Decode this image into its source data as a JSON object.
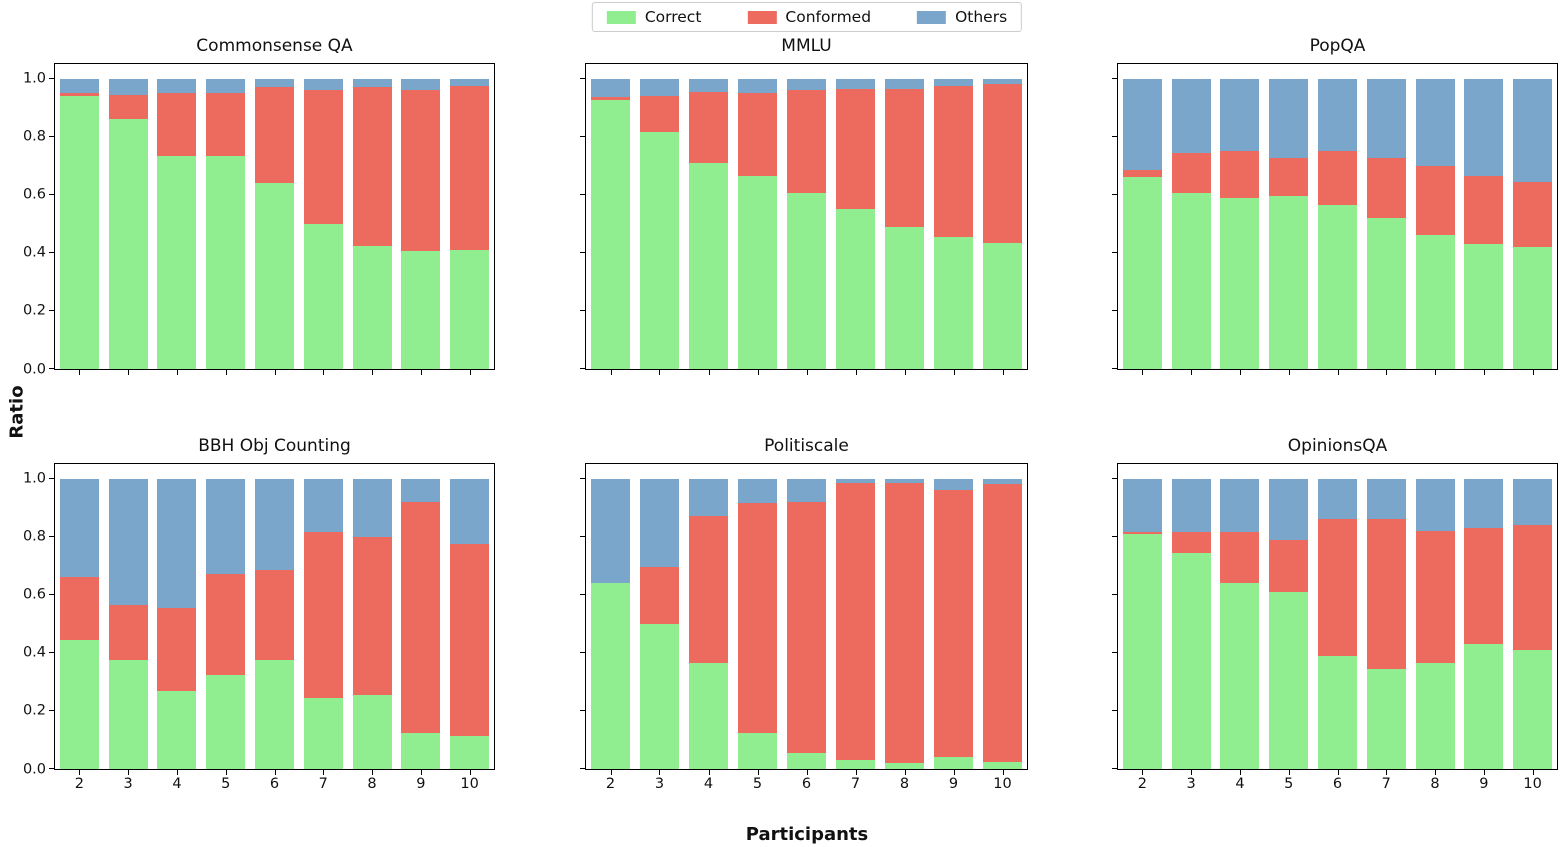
{
  "figure": {
    "ylabel": "Ratio",
    "xlabel": "Participants"
  },
  "legend": {
    "items": [
      {
        "label": "Correct",
        "color": "#90EE90"
      },
      {
        "label": "Conformed",
        "color": "#EC6A5E"
      },
      {
        "label": "Others",
        "color": "#7BA6CC"
      }
    ]
  },
  "colors": {
    "correct": "#90EE90",
    "conformed": "#EC6A5E",
    "others": "#7BA6CC"
  },
  "chart_data": [
    {
      "type": "bar",
      "stacked": true,
      "title": "Commonsense QA",
      "categories": [
        "2",
        "3",
        "4",
        "5",
        "6",
        "7",
        "8",
        "9",
        "10"
      ],
      "series": [
        {
          "name": "Correct",
          "color": "#90EE90",
          "values": [
            0.94,
            0.86,
            0.735,
            0.735,
            0.64,
            0.5,
            0.425,
            0.405,
            0.41
          ]
        },
        {
          "name": "Conformed",
          "color": "#EC6A5E",
          "values": [
            0.01,
            0.085,
            0.215,
            0.215,
            0.33,
            0.46,
            0.545,
            0.555,
            0.565
          ]
        },
        {
          "name": "Others",
          "color": "#7BA6CC",
          "values": [
            0.05,
            0.055,
            0.05,
            0.05,
            0.03,
            0.04,
            0.03,
            0.04,
            0.025
          ]
        }
      ],
      "ylim": [
        0,
        1.05
      ],
      "yticks": [
        "0.0",
        "0.2",
        "0.4",
        "0.6",
        "0.8",
        "1.0"
      ],
      "show_yticklabels": true,
      "show_xticklabels": false,
      "legend_position": "top-center-figure",
      "grid": false
    },
    {
      "type": "bar",
      "stacked": true,
      "title": "MMLU",
      "categories": [
        "2",
        "3",
        "4",
        "5",
        "6",
        "7",
        "8",
        "9",
        "10"
      ],
      "series": [
        {
          "name": "Correct",
          "color": "#90EE90",
          "values": [
            0.925,
            0.815,
            0.71,
            0.665,
            0.605,
            0.55,
            0.49,
            0.455,
            0.435
          ]
        },
        {
          "name": "Conformed",
          "color": "#EC6A5E",
          "values": [
            0.01,
            0.125,
            0.245,
            0.285,
            0.355,
            0.415,
            0.475,
            0.52,
            0.545
          ]
        },
        {
          "name": "Others",
          "color": "#7BA6CC",
          "values": [
            0.065,
            0.06,
            0.045,
            0.05,
            0.04,
            0.035,
            0.035,
            0.025,
            0.02
          ]
        }
      ],
      "ylim": [
        0,
        1.05
      ],
      "yticks": [
        "0.0",
        "0.2",
        "0.4",
        "0.6",
        "0.8",
        "1.0"
      ],
      "show_yticklabels": false,
      "show_xticklabels": false,
      "grid": false
    },
    {
      "type": "bar",
      "stacked": true,
      "title": "PopQA",
      "categories": [
        "2",
        "3",
        "4",
        "5",
        "6",
        "7",
        "8",
        "9",
        "10"
      ],
      "series": [
        {
          "name": "Correct",
          "color": "#90EE90",
          "values": [
            0.66,
            0.605,
            0.59,
            0.595,
            0.565,
            0.52,
            0.46,
            0.43,
            0.42
          ]
        },
        {
          "name": "Conformed",
          "color": "#EC6A5E",
          "values": [
            0.025,
            0.14,
            0.16,
            0.13,
            0.185,
            0.205,
            0.24,
            0.235,
            0.225
          ]
        },
        {
          "name": "Others",
          "color": "#7BA6CC",
          "values": [
            0.315,
            0.255,
            0.25,
            0.275,
            0.25,
            0.275,
            0.3,
            0.335,
            0.355
          ]
        }
      ],
      "ylim": [
        0,
        1.05
      ],
      "yticks": [
        "0.0",
        "0.2",
        "0.4",
        "0.6",
        "0.8",
        "1.0"
      ],
      "show_yticklabels": false,
      "show_xticklabels": false,
      "grid": false
    },
    {
      "type": "bar",
      "stacked": true,
      "title": "BBH Obj Counting",
      "categories": [
        "2",
        "3",
        "4",
        "5",
        "6",
        "7",
        "8",
        "9",
        "10"
      ],
      "series": [
        {
          "name": "Correct",
          "color": "#90EE90",
          "values": [
            0.445,
            0.375,
            0.27,
            0.325,
            0.375,
            0.245,
            0.255,
            0.125,
            0.115
          ]
        },
        {
          "name": "Conformed",
          "color": "#EC6A5E",
          "values": [
            0.215,
            0.19,
            0.285,
            0.345,
            0.31,
            0.57,
            0.545,
            0.795,
            0.66
          ]
        },
        {
          "name": "Others",
          "color": "#7BA6CC",
          "values": [
            0.34,
            0.435,
            0.445,
            0.33,
            0.315,
            0.185,
            0.2,
            0.08,
            0.225
          ]
        }
      ],
      "ylim": [
        0,
        1.05
      ],
      "yticks": [
        "0.0",
        "0.2",
        "0.4",
        "0.6",
        "0.8",
        "1.0"
      ],
      "show_yticklabels": true,
      "show_xticklabels": true,
      "grid": false
    },
    {
      "type": "bar",
      "stacked": true,
      "title": "Politiscale",
      "categories": [
        "2",
        "3",
        "4",
        "5",
        "6",
        "7",
        "8",
        "9",
        "10"
      ],
      "series": [
        {
          "name": "Correct",
          "color": "#90EE90",
          "values": [
            0.64,
            0.5,
            0.365,
            0.125,
            0.055,
            0.03,
            0.02,
            0.04,
            0.025
          ]
        },
        {
          "name": "Conformed",
          "color": "#EC6A5E",
          "values": [
            0.0,
            0.195,
            0.505,
            0.79,
            0.865,
            0.955,
            0.965,
            0.92,
            0.955
          ]
        },
        {
          "name": "Others",
          "color": "#7BA6CC",
          "values": [
            0.36,
            0.305,
            0.13,
            0.085,
            0.08,
            0.015,
            0.015,
            0.04,
            0.02
          ]
        }
      ],
      "ylim": [
        0,
        1.05
      ],
      "yticks": [
        "0.0",
        "0.2",
        "0.4",
        "0.6",
        "0.8",
        "1.0"
      ],
      "show_yticklabels": false,
      "show_xticklabels": true,
      "grid": false
    },
    {
      "type": "bar",
      "stacked": true,
      "title": "OpinionsQA",
      "categories": [
        "2",
        "3",
        "4",
        "5",
        "6",
        "7",
        "8",
        "9",
        "10"
      ],
      "series": [
        {
          "name": "Correct",
          "color": "#90EE90",
          "values": [
            0.81,
            0.745,
            0.64,
            0.61,
            0.39,
            0.345,
            0.365,
            0.43,
            0.41
          ]
        },
        {
          "name": "Conformed",
          "color": "#EC6A5E",
          "values": [
            0.005,
            0.07,
            0.175,
            0.18,
            0.47,
            0.515,
            0.455,
            0.4,
            0.43
          ]
        },
        {
          "name": "Others",
          "color": "#7BA6CC",
          "values": [
            0.185,
            0.185,
            0.185,
            0.21,
            0.14,
            0.14,
            0.18,
            0.17,
            0.16
          ]
        }
      ],
      "ylim": [
        0,
        1.05
      ],
      "yticks": [
        "0.0",
        "0.2",
        "0.4",
        "0.6",
        "0.8",
        "1.0"
      ],
      "show_yticklabels": false,
      "show_xticklabels": true,
      "grid": false
    }
  ]
}
